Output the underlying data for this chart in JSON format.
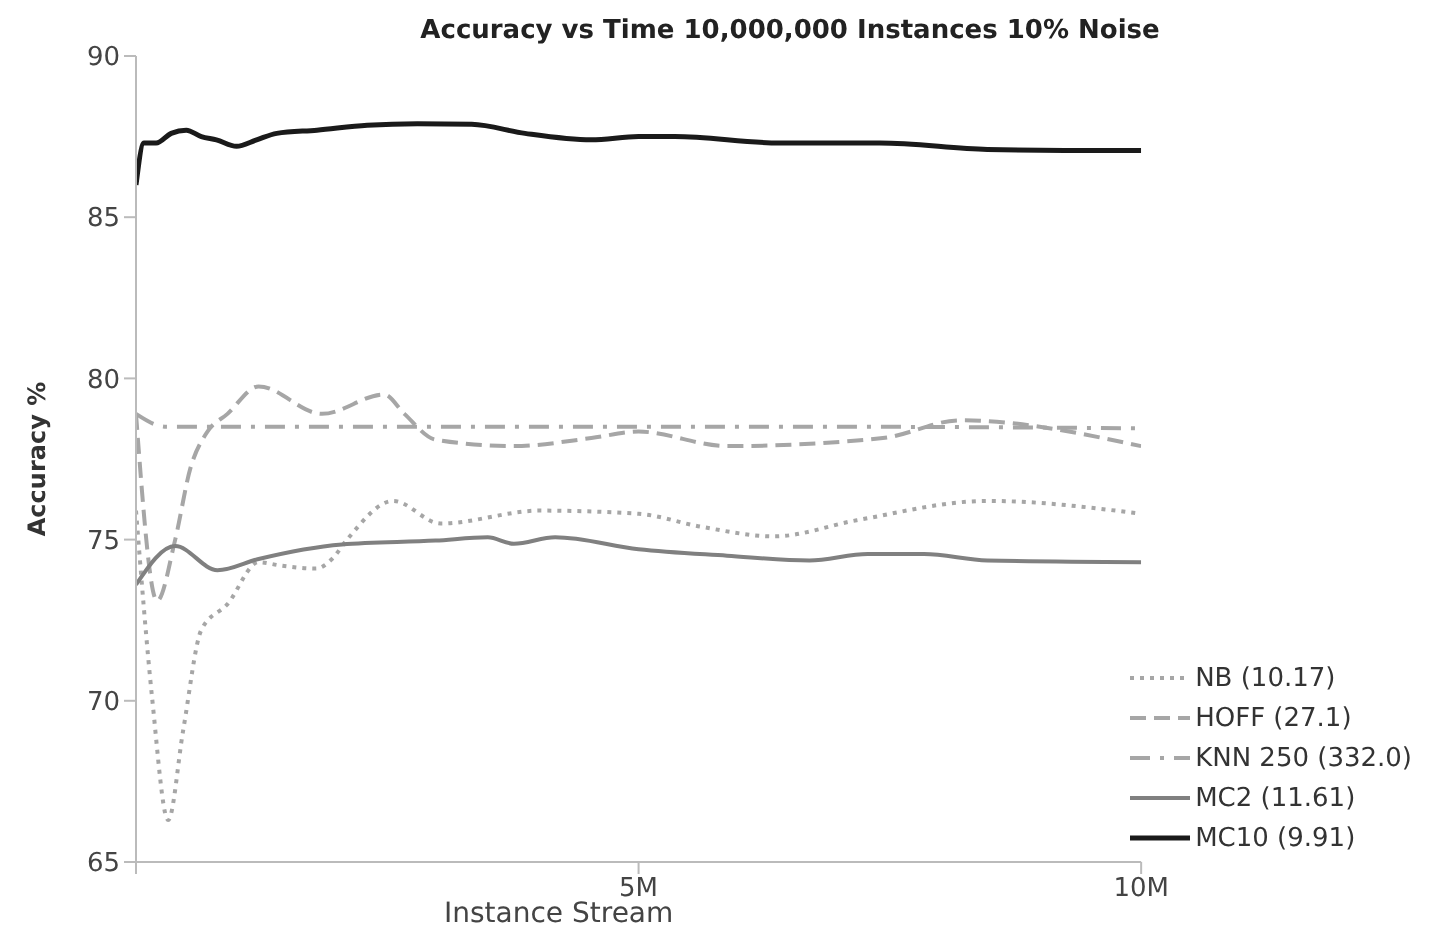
{
  "chart_data": {
    "type": "line",
    "title": "Accuracy vs Time 10,000,000 Instances 10% Noise",
    "xlabel": "Instance Stream",
    "ylabel": "Accuracy %",
    "xlim": [
      0,
      10
    ],
    "xticks": [
      {
        "value": 0,
        "label": null
      },
      {
        "value": 5,
        "label": "5M"
      },
      {
        "value": 10,
        "label": "10M"
      }
    ],
    "ylim": [
      65,
      90
    ],
    "yticks": [
      65,
      70,
      75,
      80,
      85,
      90
    ],
    "grid": false,
    "legend": "bottom right",
    "marker": "none",
    "series": [
      {
        "name": "NB (10.17)",
        "color": "#a6a6a6",
        "line_style": "dotted",
        "x": [
          0,
          0.16,
          0.32,
          0.47,
          0.65,
          0.91,
          1.22,
          1.43,
          1.79,
          1.95,
          2.1,
          2.56,
          3.03,
          4.02,
          5,
          5.62,
          6.35,
          7.17,
          8.47,
          10
        ],
        "values": [
          75.9,
          70.1,
          66.3,
          69.1,
          72.2,
          73,
          74.3,
          74.2,
          74.1,
          74.4,
          75,
          76.2,
          75.5,
          75.9,
          75.8,
          75.4,
          75.1,
          75.6,
          76.2,
          75.8
        ]
      },
      {
        "name": "HOFF (27.1)",
        "color": "#a6a6a6",
        "line_style": "dashed",
        "x": [
          0,
          0.21,
          0.39,
          0.54,
          0.7,
          0.91,
          1.22,
          1.85,
          2.47,
          2.67,
          2.98,
          3.76,
          4.53,
          5,
          5.88,
          7.43,
          8.2,
          10
        ],
        "values": [
          78.9,
          73.1,
          75,
          77.2,
          78.3,
          78.9,
          79.75,
          78.9,
          79.5,
          78.9,
          78.1,
          77.9,
          78.15,
          78.35,
          77.9,
          78.15,
          78.7,
          77.9
        ]
      },
      {
        "name": "KNN 250 (332.0)",
        "color": "#a6a6a6",
        "line_style": "dashdot",
        "x": [
          0,
          0.3,
          1,
          2,
          3,
          5,
          7,
          10
        ],
        "values": [
          78.9,
          78.5,
          78.5,
          78.5,
          78.5,
          78.5,
          78.5,
          78.45
        ]
      },
      {
        "name": "MC2 (11.61)",
        "color": "#808080",
        "line_style": "solid",
        "x": [
          0,
          0.39,
          0.81,
          1.22,
          2.05,
          2.98,
          3.5,
          3.76,
          4.17,
          5,
          5.88,
          6.7,
          7.28,
          7.84,
          8.47,
          10
        ],
        "values": [
          73.6,
          74.8,
          74.05,
          74.4,
          74.85,
          74.97,
          75.07,
          74.87,
          75.07,
          74.7,
          74.5,
          74.35,
          74.55,
          74.55,
          74.35,
          74.3
        ]
      },
      {
        "name": "MC10 (9.91)",
        "color": "#1a1a1a",
        "line_style": "solid",
        "x": [
          0,
          0.08,
          0.2,
          0.35,
          0.5,
          0.65,
          0.8,
          1,
          1.2,
          1.4,
          1.8,
          2.3,
          2.8,
          3.34,
          3.87,
          4.53,
          5,
          5.36,
          6.4,
          7.4,
          8.47,
          9.24,
          10
        ],
        "values": [
          86,
          87.3,
          87.3,
          87.6,
          87.7,
          87.5,
          87.4,
          87.2,
          87.4,
          87.6,
          87.7,
          87.85,
          87.9,
          87.88,
          87.6,
          87.4,
          87.5,
          87.5,
          87.3,
          87.3,
          87.1,
          87.07,
          87.07
        ]
      }
    ]
  }
}
